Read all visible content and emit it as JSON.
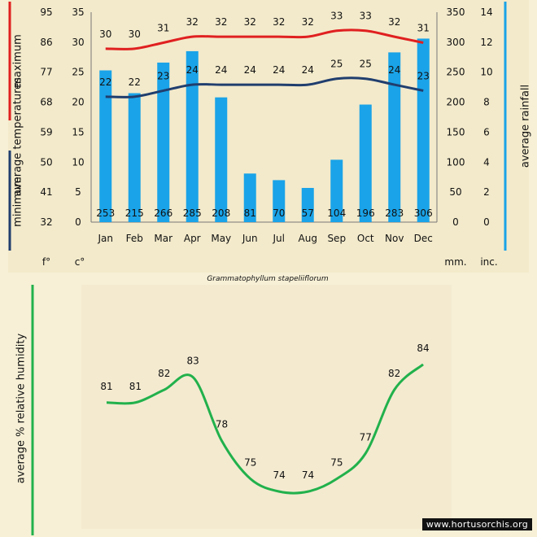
{
  "colors": {
    "background": "#f7f0d6",
    "panel": "#f2e8c8",
    "bar": "#1aa3e8",
    "max_line": "#e02020",
    "min_line": "#203e6e",
    "humidity_line": "#22b14c",
    "left_bracket_top": "#e02020",
    "left_bracket_bottom": "#203e6e",
    "right_bracket": "#1aa3e8",
    "humidity_bracket": "#22b14c"
  },
  "chart_data": [
    {
      "type": "bar+line",
      "title": "Grammatophyllum stapeliiflorum",
      "categories": [
        "Jan",
        "Feb",
        "Mar",
        "Apr",
        "May",
        "Jun",
        "Jul",
        "Aug",
        "Sep",
        "Oct",
        "Nov",
        "Dec"
      ],
      "series": [
        {
          "name": "average rainfall (mm)",
          "kind": "bar",
          "values": [
            253,
            215,
            266,
            285,
            208,
            81,
            70,
            57,
            104,
            196,
            283,
            306
          ]
        },
        {
          "name": "maximum average temperature (c°)",
          "kind": "line",
          "values": [
            30,
            30,
            31,
            32,
            32,
            32,
            32,
            32,
            33,
            33,
            32,
            31
          ]
        },
        {
          "name": "minimum average temperature (c°)",
          "kind": "line",
          "values": [
            22,
            22,
            23,
            24,
            24,
            24,
            24,
            24,
            25,
            25,
            24,
            23
          ]
        }
      ],
      "axes": {
        "left_f": {
          "unit": "f°",
          "ticks": [
            "95",
            "86",
            "77",
            "68",
            "59",
            "50",
            "41",
            "32"
          ]
        },
        "left_c": {
          "unit": "c°",
          "ticks": [
            "35",
            "30",
            "25",
            "20",
            "15",
            "10",
            "5",
            "0"
          ],
          "ylim": [
            0,
            35
          ]
        },
        "right_mm": {
          "unit": "mm.",
          "ticks": [
            "350",
            "300",
            "250",
            "200",
            "150",
            "100",
            "50",
            "0"
          ],
          "ylim": [
            0,
            350
          ]
        },
        "right_inc": {
          "unit": "inc.",
          "ticks": [
            "14",
            "12",
            "10",
            "8",
            "6",
            "4",
            "2",
            "0"
          ]
        }
      },
      "labels": {
        "ylabel_max": "maximum",
        "ylabel_avg": "average  temperatures",
        "ylabel_min": "minimum",
        "ylabel_right": "average rainfall"
      }
    },
    {
      "type": "line",
      "title": "average %  relative humidity",
      "categories": [
        "Jan",
        "Feb",
        "Mar",
        "Apr",
        "May",
        "Jun",
        "Jul",
        "Aug",
        "Sep",
        "Oct",
        "Nov",
        "Dec"
      ],
      "values": [
        81,
        81,
        82,
        83,
        78,
        75,
        74,
        74,
        75,
        77,
        82,
        84
      ],
      "ylabel": "average %  relative humidity",
      "ylim": [
        71,
        87
      ]
    }
  ],
  "footer": {
    "source": "www.hortusorchis.org"
  }
}
